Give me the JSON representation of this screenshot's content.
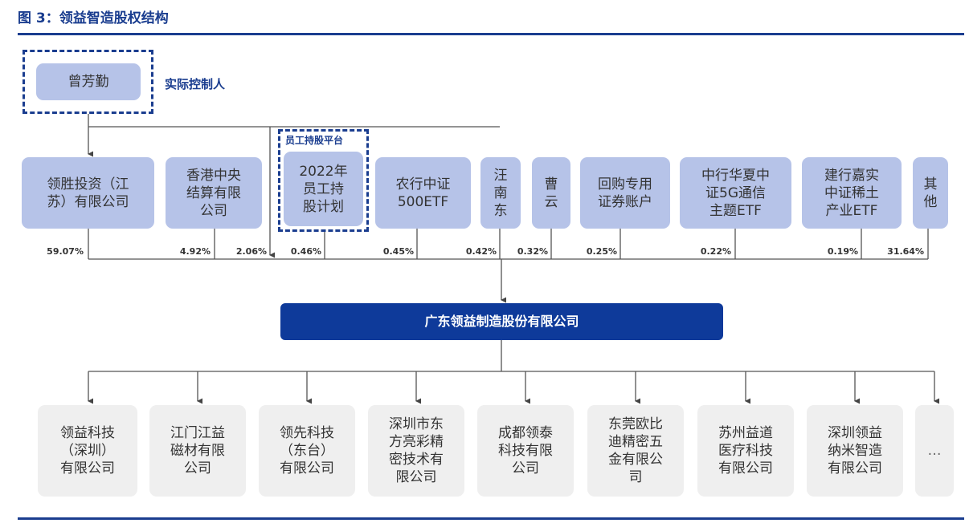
{
  "title": "图 3：领益智造股权结构",
  "controller": {
    "name": "曾芳勤",
    "label": "实际控制人"
  },
  "esop_tag": "员工持股平台",
  "company": "广东领益制造股份有限公司",
  "shareholders": [
    {
      "name": "领胜投资（江\n苏）有限公司",
      "pct": "59.07%"
    },
    {
      "name": "香港中央\n结算有限\n公司",
      "pct": "4.92%"
    },
    {
      "name": "2022年\n员工持\n股计划",
      "pct": "2.06%"
    },
    {
      "name": "农行中证\n500ETF",
      "pct": "0.46%"
    },
    {
      "name": "汪\n南\n东",
      "pct": "0.45%"
    },
    {
      "name": "曹\n云",
      "pct": "0.42%"
    },
    {
      "name": "回购专用\n证券账户",
      "pct": "0.32%"
    },
    {
      "name": "中行华夏中\n证5G通信\n主题ETF",
      "pct": "0.25%"
    },
    {
      "name": "建行嘉实\n中证稀土\n产业ETF",
      "pct": "0.22%"
    },
    {
      "name": "其\n他",
      "pct": "0.19%"
    }
  ],
  "others_pct": "31.64%",
  "subsidiaries": [
    "领益科技\n（深圳）\n有限公司",
    "江门江益\n磁材有限\n公司",
    "领先科技\n（东台）\n有限公司",
    "深圳市东\n方亮彩精\n密技术有\n限公司",
    "成都领泰\n科技有限\n公司",
    "东莞欧比\n迪精密五\n金有限公\n司",
    "苏州益道\n医疗科技\n有限公司",
    "深圳领益\n纳米智造\n有限公司",
    "…"
  ],
  "colors": {
    "accent": "#1a3d8f",
    "shareholder_fill": "#b6c3e8",
    "main_fill": "#0e3a9a",
    "sub_fill": "#efefef"
  }
}
